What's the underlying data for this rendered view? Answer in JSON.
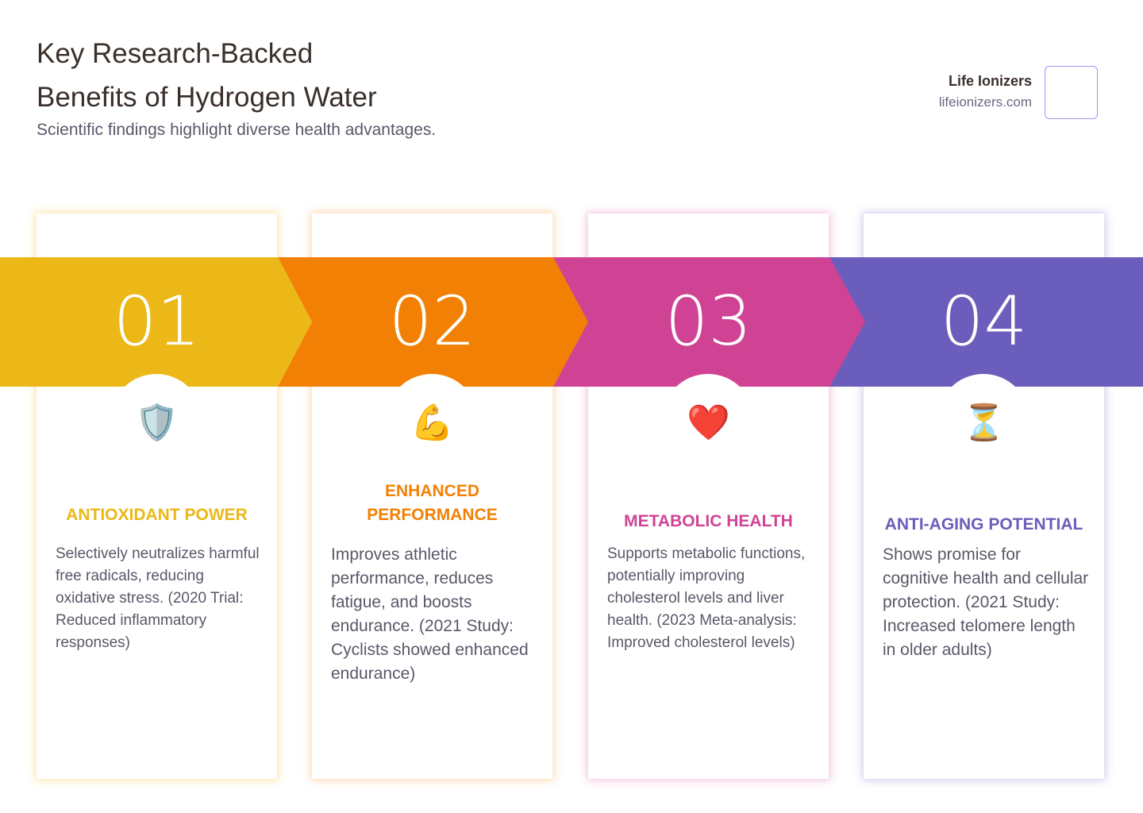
{
  "header": {
    "title_line1": "Key Research-Backed",
    "title_line2": "Benefits of Hydrogen Water",
    "subtitle": "Scientific findings highlight diverse health advantages."
  },
  "brand": {
    "name": "Life Ionizers",
    "url": "lifeionizers.com"
  },
  "steps": [
    {
      "number": "01",
      "icon": "shield-icon",
      "emoji": "🛡️",
      "color": "#EBB817",
      "title": "ANTIOXIDANT POWER",
      "text": "Selectively neutralizes harmful free radicals, reducing oxidative stress. (2020 Trial: Reduced inflammatory responses)"
    },
    {
      "number": "02",
      "icon": "flexed-biceps-icon",
      "emoji": "💪",
      "color": "#F28004",
      "title": "ENHANCED PERFORMANCE",
      "text": "Improves athletic performance, reduces fatigue, and boosts endurance. (2021 Study: Cyclists showed enhanced endurance)"
    },
    {
      "number": "03",
      "icon": "heart-icon",
      "emoji": "❤️",
      "color": "#D04394",
      "title": "METABOLIC HEALTH",
      "text": "Supports metabolic functions, potentially improving cholesterol levels and liver health. (2023 Meta-analysis: Improved cholesterol levels)"
    },
    {
      "number": "04",
      "icon": "hourglass-icon",
      "emoji": "⏳",
      "color": "#6A5DBB",
      "title": "ANTI-AGING POTENTIAL",
      "text": "Shows promise for cognitive health and cellular protection. (2021 Study: Increased telomere length in older adults)"
    }
  ]
}
